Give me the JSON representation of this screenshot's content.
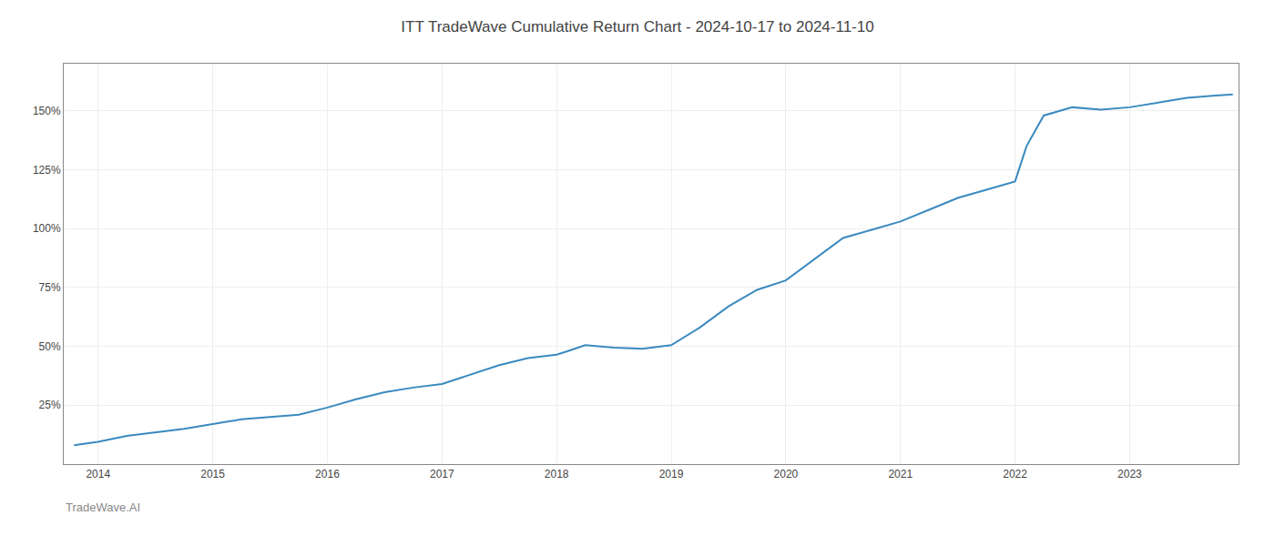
{
  "chart_data": {
    "type": "line",
    "title": "ITT TradeWave Cumulative Return Chart - 2024-10-17 to 2024-11-10",
    "annotations": [
      "TradeWave.AI"
    ],
    "x": [
      2013.79,
      2014.0,
      2014.25,
      2014.5,
      2014.75,
      2015.0,
      2015.25,
      2015.5,
      2015.75,
      2016.0,
      2016.25,
      2016.5,
      2016.75,
      2017.0,
      2017.25,
      2017.5,
      2017.75,
      2018.0,
      2018.1,
      2018.25,
      2018.5,
      2018.75,
      2019.0,
      2019.25,
      2019.5,
      2019.75,
      2020.0,
      2020.25,
      2020.5,
      2020.75,
      2021.0,
      2021.25,
      2021.5,
      2021.75,
      2022.0,
      2022.1,
      2022.25,
      2022.5,
      2022.75,
      2023.0,
      2023.25,
      2023.5,
      2023.75,
      2023.9
    ],
    "values": [
      8.0,
      9.5,
      12.0,
      13.5,
      15.0,
      17.0,
      19.0,
      20.0,
      21.0,
      24.0,
      27.5,
      30.5,
      32.5,
      34.0,
      38.0,
      42.0,
      45.0,
      46.5,
      48.0,
      50.5,
      49.5,
      49.0,
      50.5,
      58.0,
      67.0,
      74.0,
      78.0,
      87.0,
      96.0,
      99.5,
      103.0,
      108.0,
      113.0,
      116.5,
      120.0,
      135.0,
      148.0,
      151.5,
      150.5,
      151.5,
      153.5,
      155.5,
      156.5,
      157.0
    ],
    "color": "#3a8abf",
    "xlim": [
      2013.7,
      2023.95
    ],
    "xticks": [
      2014,
      2015,
      2016,
      2017,
      2018,
      2019,
      2020,
      2021,
      2022,
      2023
    ],
    "ylim": [
      0,
      170
    ],
    "yticks": [
      {
        "value": 25,
        "label": "25%"
      },
      {
        "value": 50,
        "label": "50%"
      },
      {
        "value": 75,
        "label": "75%"
      },
      {
        "value": 100,
        "label": "100%"
      },
      {
        "value": 125,
        "label": "125%"
      },
      {
        "value": 150,
        "label": "150%"
      }
    ],
    "grid": true
  }
}
